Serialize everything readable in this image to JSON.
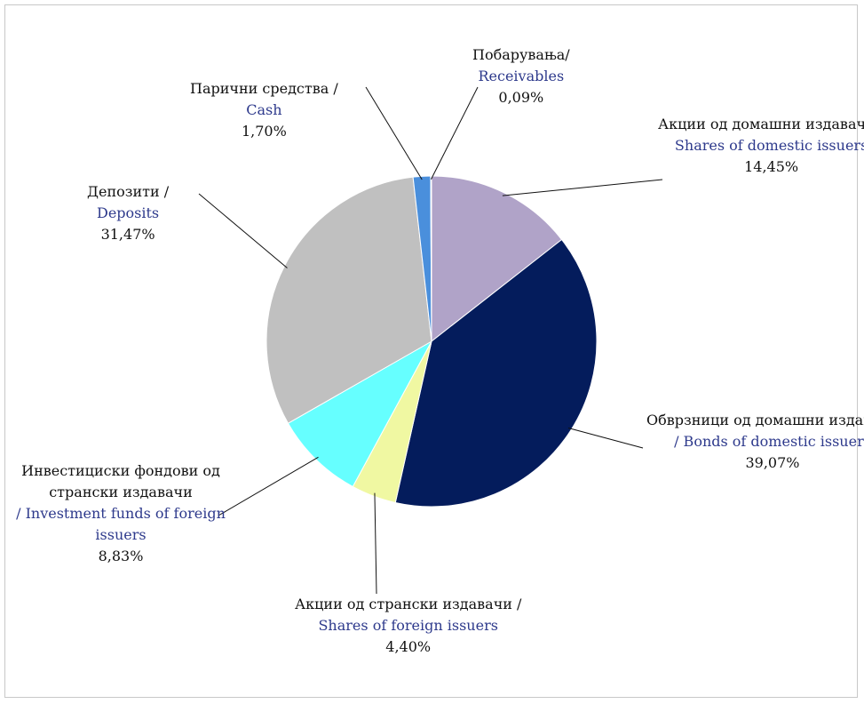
{
  "chart_data": {
    "type": "pie",
    "title": "",
    "start_angle_deg": 0,
    "direction": "clockwise",
    "slices": [
      {
        "label_mk": "Акции од домашни издавачи /",
        "label_en": "Shares of domestic issuers",
        "value": 14.45,
        "value_label": "14,45%",
        "color": "#b0a3c8"
      },
      {
        "label_mk": "Обврзници од домашни издавачи",
        "label_en": "/ Bonds of domestic issuers",
        "value": 39.07,
        "value_label": "39,07%",
        "color": "#041c5c"
      },
      {
        "label_mk": "Акции од странски издавачи /",
        "label_en": "Shares of foreign issuers",
        "value": 4.4,
        "value_label": "4,40%",
        "color": "#f0f8a2"
      },
      {
        "label_mk": "Инвестициски фондови од странски издавачи",
        "label_en": "/ Investment funds of foreign issuers",
        "value": 8.83,
        "value_label": "8,83%",
        "color": "#66ffff"
      },
      {
        "label_mk": "Депозити /",
        "label_en": "Deposits",
        "value": 31.47,
        "value_label": "31,47%",
        "color": "#c0c0c0"
      },
      {
        "label_mk": "Парични средства /",
        "label_en": "Cash",
        "value": 1.7,
        "value_label": "1,70%",
        "color": "#4a8fdc"
      },
      {
        "label_mk": "Побарувања/",
        "label_en": "Receivables",
        "value": 0.09,
        "value_label": "0,09%",
        "color": "#2f6fb8"
      }
    ]
  }
}
